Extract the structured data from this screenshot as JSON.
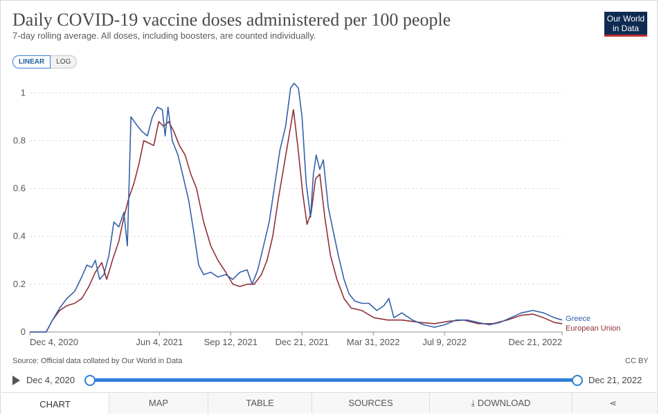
{
  "header": {
    "title": "Daily COVID-19 vaccine doses administered per 100 people",
    "subtitle": "7-day rolling average. All doses, including boosters, are counted individually.",
    "logo_line1": "Our World",
    "logo_line2": "in Data"
  },
  "scale_toggle": {
    "linear": "LINEAR",
    "log": "LOG",
    "selected": "LINEAR"
  },
  "footer": {
    "source": "Source: Official data collated by Our World in Data",
    "license": "CC BY"
  },
  "timeline": {
    "start": "Dec 4, 2020",
    "end": "Dec 21, 2022"
  },
  "tabs": [
    {
      "label": "CHART",
      "active": true
    },
    {
      "label": "MAP"
    },
    {
      "label": "TABLE"
    },
    {
      "label": "SOURCES"
    },
    {
      "label": "DOWNLOAD",
      "icon": "download-icon"
    },
    {
      "label": "",
      "icon": "share-icon"
    }
  ],
  "chart_data": {
    "type": "line",
    "title": "Daily COVID-19 vaccine doses administered per 100 people",
    "subtitle": "7-day rolling average. All doses, including boosters, are counted individually.",
    "x_ticks": [
      "Dec 4, 2020",
      "Jun 4, 2021",
      "Sep 12, 2021",
      "Dec 21, 2021",
      "Mar 31, 2022",
      "Jul 9, 2022",
      "Dec 21, 2022"
    ],
    "x_range": [
      "2020-12-04",
      "2022-12-21"
    ],
    "y_ticks": [
      0,
      0.2,
      0.4,
      0.6,
      0.8,
      1
    ],
    "ylim": [
      0,
      1.05
    ],
    "grid": "horizontal dashed",
    "legend": "right, at line ends",
    "series": [
      {
        "name": "Greece",
        "color": "#3360a9",
        "points": [
          [
            "2020-12-04",
            0
          ],
          [
            "2020-12-27",
            0
          ],
          [
            "2021-01-05",
            0.05
          ],
          [
            "2021-01-15",
            0.1
          ],
          [
            "2021-01-25",
            0.14
          ],
          [
            "2021-02-05",
            0.17
          ],
          [
            "2021-02-15",
            0.23
          ],
          [
            "2021-02-22",
            0.28
          ],
          [
            "2021-03-01",
            0.27
          ],
          [
            "2021-03-06",
            0.3
          ],
          [
            "2021-03-12",
            0.22
          ],
          [
            "2021-03-18",
            0.24
          ],
          [
            "2021-03-25",
            0.32
          ],
          [
            "2021-04-01",
            0.46
          ],
          [
            "2021-04-08",
            0.44
          ],
          [
            "2021-04-15",
            0.5
          ],
          [
            "2021-04-20",
            0.36
          ],
          [
            "2021-04-25",
            0.9
          ],
          [
            "2021-05-02",
            0.87
          ],
          [
            "2021-05-10",
            0.84
          ],
          [
            "2021-05-18",
            0.82
          ],
          [
            "2021-05-25",
            0.9
          ],
          [
            "2021-06-01",
            0.94
          ],
          [
            "2021-06-08",
            0.93
          ],
          [
            "2021-06-12",
            0.82
          ],
          [
            "2021-06-16",
            0.94
          ],
          [
            "2021-06-22",
            0.8
          ],
          [
            "2021-06-30",
            0.74
          ],
          [
            "2021-07-08",
            0.64
          ],
          [
            "2021-07-15",
            0.55
          ],
          [
            "2021-07-22",
            0.42
          ],
          [
            "2021-07-29",
            0.28
          ],
          [
            "2021-08-05",
            0.24
          ],
          [
            "2021-08-15",
            0.25
          ],
          [
            "2021-08-25",
            0.23
          ],
          [
            "2021-09-05",
            0.24
          ],
          [
            "2021-09-15",
            0.22
          ],
          [
            "2021-09-25",
            0.25
          ],
          [
            "2021-10-05",
            0.26
          ],
          [
            "2021-10-12",
            0.2
          ],
          [
            "2021-10-20",
            0.26
          ],
          [
            "2021-10-28",
            0.36
          ],
          [
            "2021-11-05",
            0.46
          ],
          [
            "2021-11-12",
            0.6
          ],
          [
            "2021-11-20",
            0.76
          ],
          [
            "2021-11-28",
            0.86
          ],
          [
            "2021-12-05",
            1.02
          ],
          [
            "2021-12-10",
            1.04
          ],
          [
            "2021-12-16",
            1.02
          ],
          [
            "2021-12-21",
            0.9
          ],
          [
            "2021-12-27",
            0.62
          ],
          [
            "2022-01-02",
            0.48
          ],
          [
            "2022-01-06",
            0.66
          ],
          [
            "2022-01-10",
            0.74
          ],
          [
            "2022-01-15",
            0.68
          ],
          [
            "2022-01-20",
            0.72
          ],
          [
            "2022-01-27",
            0.52
          ],
          [
            "2022-02-03",
            0.42
          ],
          [
            "2022-02-10",
            0.32
          ],
          [
            "2022-02-18",
            0.22
          ],
          [
            "2022-02-25",
            0.16
          ],
          [
            "2022-03-05",
            0.13
          ],
          [
            "2022-03-15",
            0.12
          ],
          [
            "2022-03-25",
            0.12
          ],
          [
            "2022-04-05",
            0.09
          ],
          [
            "2022-04-15",
            0.11
          ],
          [
            "2022-04-22",
            0.14
          ],
          [
            "2022-04-29",
            0.06
          ],
          [
            "2022-05-10",
            0.08
          ],
          [
            "2022-05-25",
            0.05
          ],
          [
            "2022-06-10",
            0.03
          ],
          [
            "2022-06-25",
            0.02
          ],
          [
            "2022-07-09",
            0.03
          ],
          [
            "2022-07-25",
            0.05
          ],
          [
            "2022-08-10",
            0.05
          ],
          [
            "2022-08-25",
            0.04
          ],
          [
            "2022-09-10",
            0.03
          ],
          [
            "2022-09-25",
            0.04
          ],
          [
            "2022-10-10",
            0.06
          ],
          [
            "2022-10-25",
            0.08
          ],
          [
            "2022-11-10",
            0.09
          ],
          [
            "2022-11-25",
            0.08
          ],
          [
            "2022-12-10",
            0.06
          ],
          [
            "2022-12-21",
            0.05
          ]
        ]
      },
      {
        "name": "European Union",
        "color": "#8f2f37",
        "points": [
          [
            "2020-12-04",
            0
          ],
          [
            "2020-12-27",
            0
          ],
          [
            "2021-01-05",
            0.05
          ],
          [
            "2021-01-15",
            0.09
          ],
          [
            "2021-01-25",
            0.11
          ],
          [
            "2021-02-05",
            0.12
          ],
          [
            "2021-02-15",
            0.14
          ],
          [
            "2021-02-25",
            0.19
          ],
          [
            "2021-03-06",
            0.25
          ],
          [
            "2021-03-15",
            0.29
          ],
          [
            "2021-03-22",
            0.22
          ],
          [
            "2021-03-30",
            0.3
          ],
          [
            "2021-04-08",
            0.38
          ],
          [
            "2021-04-15",
            0.48
          ],
          [
            "2021-04-22",
            0.56
          ],
          [
            "2021-04-29",
            0.62
          ],
          [
            "2021-05-06",
            0.7
          ],
          [
            "2021-05-13",
            0.8
          ],
          [
            "2021-05-20",
            0.79
          ],
          [
            "2021-05-27",
            0.78
          ],
          [
            "2021-06-03",
            0.88
          ],
          [
            "2021-06-10",
            0.86
          ],
          [
            "2021-06-17",
            0.88
          ],
          [
            "2021-06-24",
            0.84
          ],
          [
            "2021-07-02",
            0.78
          ],
          [
            "2021-07-10",
            0.74
          ],
          [
            "2021-07-18",
            0.66
          ],
          [
            "2021-07-26",
            0.6
          ],
          [
            "2021-08-05",
            0.46
          ],
          [
            "2021-08-15",
            0.36
          ],
          [
            "2021-08-25",
            0.3
          ],
          [
            "2021-09-05",
            0.25
          ],
          [
            "2021-09-15",
            0.2
          ],
          [
            "2021-09-25",
            0.19
          ],
          [
            "2021-10-05",
            0.2
          ],
          [
            "2021-10-15",
            0.2
          ],
          [
            "2021-10-25",
            0.24
          ],
          [
            "2021-11-02",
            0.3
          ],
          [
            "2021-11-10",
            0.4
          ],
          [
            "2021-11-18",
            0.56
          ],
          [
            "2021-11-26",
            0.7
          ],
          [
            "2021-12-04",
            0.84
          ],
          [
            "2021-12-09",
            0.93
          ],
          [
            "2021-12-15",
            0.78
          ],
          [
            "2021-12-22",
            0.58
          ],
          [
            "2021-12-28",
            0.45
          ],
          [
            "2022-01-03",
            0.5
          ],
          [
            "2022-01-09",
            0.64
          ],
          [
            "2022-01-15",
            0.66
          ],
          [
            "2022-01-22",
            0.48
          ],
          [
            "2022-01-30",
            0.32
          ],
          [
            "2022-02-08",
            0.22
          ],
          [
            "2022-02-18",
            0.14
          ],
          [
            "2022-02-28",
            0.1
          ],
          [
            "2022-03-15",
            0.09
          ],
          [
            "2022-04-01",
            0.06
          ],
          [
            "2022-04-20",
            0.05
          ],
          [
            "2022-05-10",
            0.05
          ],
          [
            "2022-06-05",
            0.04
          ],
          [
            "2022-06-25",
            0.035
          ],
          [
            "2022-07-15",
            0.045
          ],
          [
            "2022-08-05",
            0.05
          ],
          [
            "2022-08-25",
            0.035
          ],
          [
            "2022-09-15",
            0.035
          ],
          [
            "2022-10-05",
            0.05
          ],
          [
            "2022-10-25",
            0.07
          ],
          [
            "2022-11-10",
            0.075
          ],
          [
            "2022-11-25",
            0.06
          ],
          [
            "2022-12-10",
            0.04
          ],
          [
            "2022-12-21",
            0.035
          ]
        ]
      }
    ]
  }
}
